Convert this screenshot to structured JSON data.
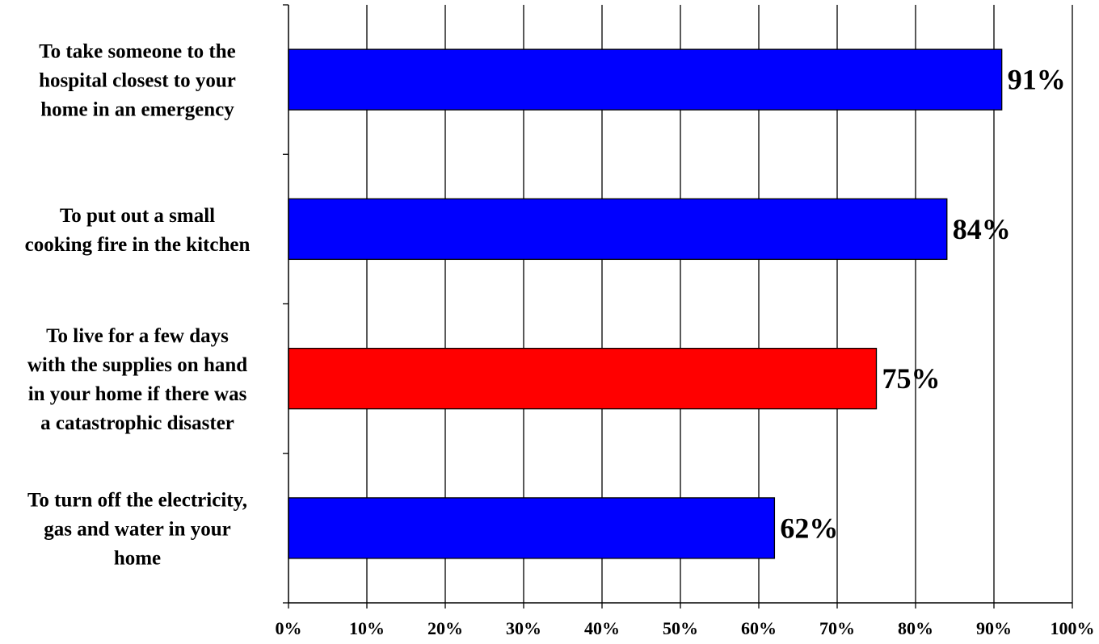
{
  "chart_data": {
    "type": "bar",
    "orientation": "horizontal",
    "categories": [
      [
        "To take someone to the",
        "hospital closest to your",
        "home in an emergency"
      ],
      [
        "To put out a small",
        "cooking fire in the kitchen"
      ],
      [
        "To live for a few days",
        "with the supplies on hand",
        "in your home if there was",
        "a catastrophic disaster"
      ],
      [
        "To turn off the electricity,",
        "gas and water in your",
        "home"
      ]
    ],
    "values": [
      91,
      84,
      75,
      62
    ],
    "data_labels": [
      "91%",
      "84%",
      "75%",
      "62%"
    ],
    "bar_colors": [
      "#0000ff",
      "#0000ff",
      "#ff0000",
      "#0000ff"
    ],
    "x_ticks": [
      0,
      10,
      20,
      30,
      40,
      50,
      60,
      70,
      80,
      90,
      100
    ],
    "x_tick_labels": [
      "0%",
      "10%",
      "20%",
      "30%",
      "40%",
      "50%",
      "60%",
      "70%",
      "80%",
      "90%",
      "100%"
    ],
    "xlim": [
      0,
      100
    ],
    "grid": "vertical",
    "legend": "none",
    "title": "",
    "xlabel": "",
    "ylabel": ""
  }
}
